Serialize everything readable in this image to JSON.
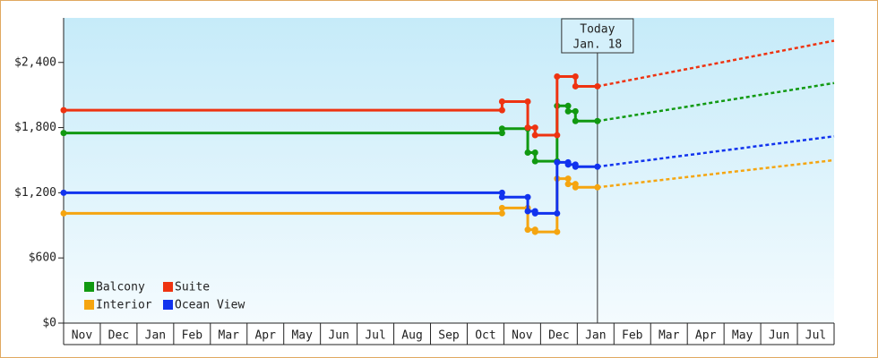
{
  "chart_data": {
    "type": "line",
    "categories": [
      "Nov",
      "Dec",
      "Jan",
      "Feb",
      "Mar",
      "Apr",
      "May",
      "Jun",
      "Jul",
      "Aug",
      "Sep",
      "Oct",
      "Nov",
      "Dec",
      "Jan",
      "Feb",
      "Mar",
      "Apr",
      "May",
      "Jun",
      "Jul"
    ],
    "xlim": [
      0,
      21
    ],
    "ylim": [
      0,
      2810
    ],
    "yticks": [
      {
        "value": 0,
        "label": "$0"
      },
      {
        "value": 600,
        "label": "$600"
      },
      {
        "value": 1200,
        "label": "$1,200"
      },
      {
        "value": 1800,
        "label": "$1,800"
      },
      {
        "value": 2400,
        "label": "$2,400"
      }
    ],
    "legend": "lower left",
    "annotation": {
      "x": 14.55,
      "lines": [
        "Today",
        "Jan. 18"
      ]
    },
    "series": [
      {
        "name": "Balcony",
        "color": "#119911",
        "x": [
          0,
          11.95,
          11.95,
          12.65,
          12.65,
          12.85,
          12.85,
          13.45,
          13.45,
          13.75,
          13.75,
          13.95,
          13.95,
          14.55
        ],
        "values": [
          1750,
          1750,
          1790,
          1790,
          1570,
          1570,
          1490,
          1490,
          2000,
          2000,
          1950,
          1950,
          1860,
          1860
        ],
        "forecast": {
          "x": [
            14.55,
            21
          ],
          "values": [
            1860,
            2210
          ]
        }
      },
      {
        "name": "Suite",
        "color": "#ee3311",
        "x": [
          0,
          11.95,
          11.95,
          12.65,
          12.65,
          12.85,
          12.85,
          13.45,
          13.45,
          13.95,
          13.95,
          14.55
        ],
        "values": [
          1960,
          1960,
          2040,
          2040,
          1800,
          1800,
          1730,
          1730,
          2270,
          2270,
          2180,
          2180
        ],
        "forecast": {
          "x": [
            14.55,
            21
          ],
          "values": [
            2180,
            2600
          ]
        }
      },
      {
        "name": "Interior",
        "color": "#f5a510",
        "x": [
          0,
          11.95,
          11.95,
          12.65,
          12.65,
          12.85,
          12.85,
          13.45,
          13.45,
          13.75,
          13.75,
          13.95,
          13.95,
          14.55
        ],
        "values": [
          1010,
          1010,
          1060,
          1060,
          860,
          860,
          840,
          840,
          1330,
          1330,
          1280,
          1280,
          1250,
          1250
        ],
        "forecast": {
          "x": [
            14.55,
            21
          ],
          "values": [
            1250,
            1500
          ]
        }
      },
      {
        "name": "Ocean View",
        "color": "#1133ee",
        "x": [
          0,
          11.95,
          11.95,
          12.65,
          12.65,
          12.85,
          12.85,
          13.45,
          13.45,
          13.75,
          13.75,
          13.95,
          13.95,
          14.55
        ],
        "values": [
          1200,
          1200,
          1160,
          1160,
          1030,
          1030,
          1010,
          1010,
          1480,
          1480,
          1460,
          1460,
          1440,
          1440
        ],
        "forecast": {
          "x": [
            14.55,
            21
          ],
          "values": [
            1440,
            1720
          ]
        }
      }
    ]
  }
}
